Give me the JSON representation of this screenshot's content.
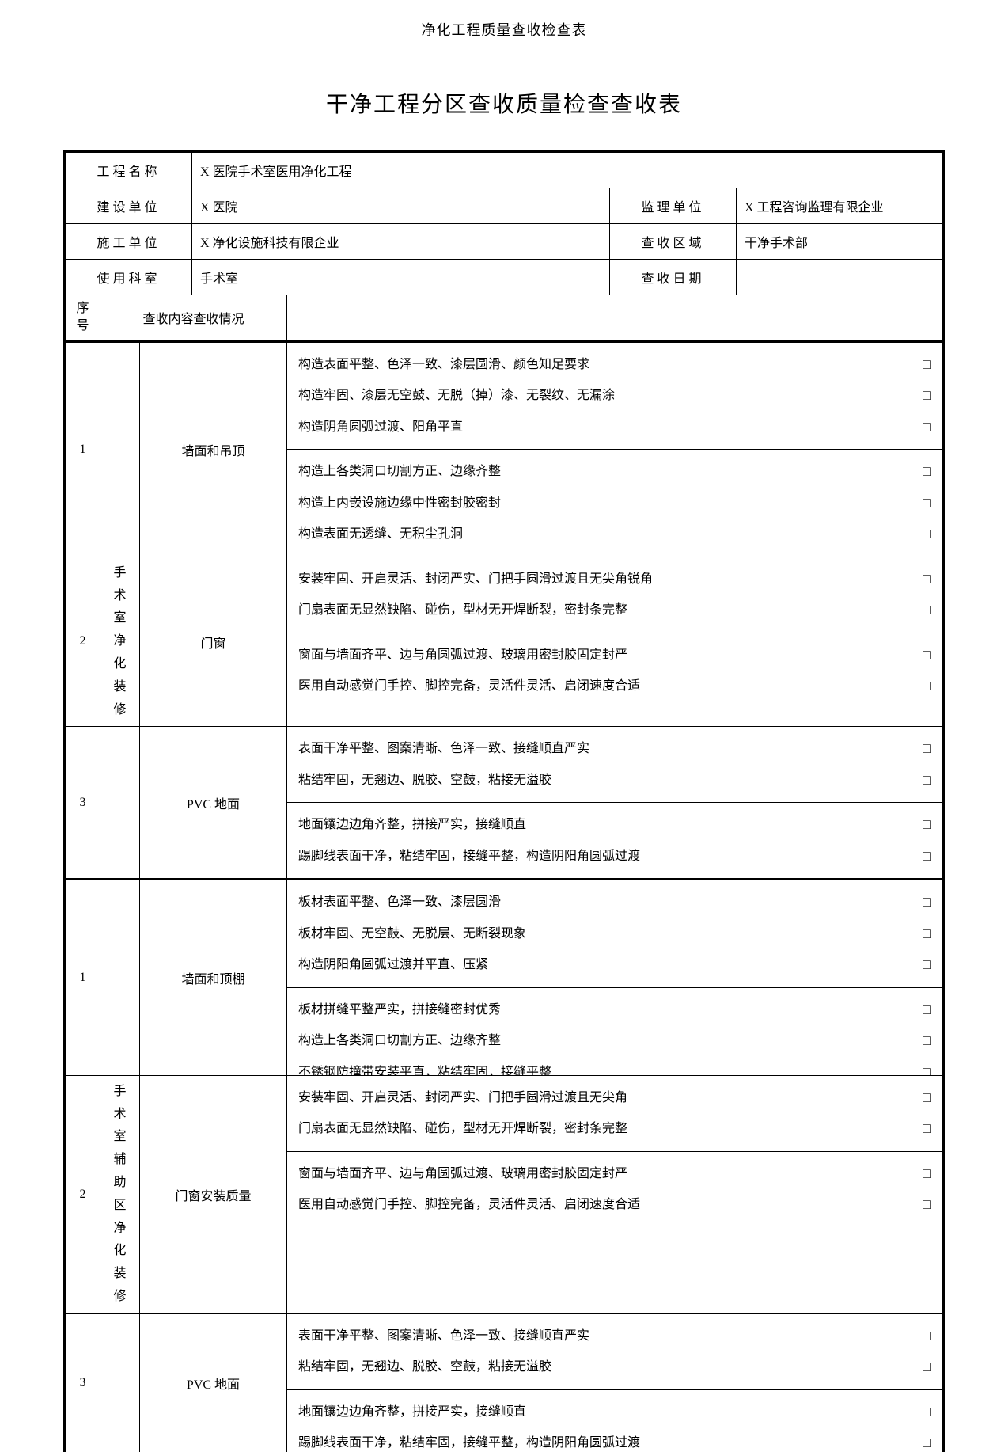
{
  "header": "净化工程质量查收检查表",
  "title": "干净工程分区查收质量检查查收表",
  "info": {
    "project_name_label": "工程名称",
    "project_name": "X 医院手术室医用净化工程",
    "builder_label": "建设单位",
    "builder": "X 医院",
    "supervisor_label": "监理单位",
    "supervisor": "X 工程咨询监理有限企业",
    "constructor_label": "施工单位",
    "constructor": "X 净化设施科技有限企业",
    "area_label": "查收区域",
    "area": "干净手术部",
    "dept_label": "使用科室",
    "dept": "手术室",
    "date_label": "查收日期",
    "date": ""
  },
  "cols": {
    "seq_label": "序号",
    "content_label": "查收内容查收情况"
  },
  "section1": {
    "category": "手术室净化装修",
    "groups": [
      {
        "seq": "1",
        "sub": "墙面和吊顶",
        "top": [
          "构造表面平整、色泽一致、漆层圆滑、颜色知足要求",
          "构造牢固、漆层无空鼓、无脱（掉）漆、无裂纹、无漏涂",
          "构造阴角圆弧过渡、阳角平直"
        ],
        "bot": [
          "构造上各类洞口切割方正、边缘齐整",
          "构造上内嵌设施边缘中性密封胶密封",
          "构造表面无透缝、无积尘孔洞"
        ]
      },
      {
        "seq": "2",
        "sub": "门窗",
        "top": [
          "安装牢固、开启灵活、封闭严实、门把手圆滑过渡且无尖角锐角",
          "门扇表面无显然缺陷、碰伤，型材无开焊断裂，密封条完整"
        ],
        "bot": [
          "窗面与墙面齐平、边与角圆弧过渡、玻璃用密封胶固定封严",
          "医用自动感觉门手控、脚控完备，灵活件灵活、启闭速度合适"
        ]
      },
      {
        "seq": "3",
        "sub": "PVC 地面",
        "top": [
          "表面干净平整、图案清晰、色泽一致、接缝顺直严实",
          "粘结牢固，无翘边、脱胶、空鼓，粘接无溢胶"
        ],
        "bot": [
          "地面镶边边角齐整，拼接严实，接缝顺直",
          "踢脚线表面干净，粘结牢固，接缝平整，构造阴阳角圆弧过渡"
        ]
      }
    ]
  },
  "section2": {
    "category": "手术室辅助区净化装修",
    "groups": [
      {
        "seq": "1",
        "sub": "墙面和顶棚",
        "top": [
          "板材表面平整、色泽一致、漆层圆滑",
          "板材牢固、无空鼓、无脱层、无断裂现象",
          "构造阴阳角圆弧过渡并平直、压紧"
        ],
        "bot": [
          "板材拼缝平整严实，拼接缝密封优秀",
          "构造上各类洞口切割方正、边缘齐整",
          "不锈钢防撞带安装平直，粘结牢固，接缝平整"
        ]
      },
      {
        "seq": "2",
        "sub": "门窗安装质量",
        "top": [
          "安装牢固、开启灵活、封闭严实、门把手圆滑过渡且无尖角",
          "门扇表面无显然缺陷、碰伤，型材无开焊断裂，密封条完整"
        ],
        "bot": [
          "窗面与墙面齐平、边与角圆弧过渡、玻璃用密封胶固定封严",
          "医用自动感觉门手控、脚控完备，灵活件灵活、启闭速度合适"
        ]
      },
      {
        "seq": "3",
        "sub": "PVC 地面",
        "top": [
          "表面干净平整、图案清晰、色泽一致、接缝顺直严实",
          "粘结牢固，无翘边、脱胶、空鼓，粘接无溢胶"
        ],
        "bot": [
          "地面镶边边角齐整，拼接严实，接缝顺直",
          "踢脚线表面干净，粘结牢固，接缝平整，构造阴阳角圆弧过渡"
        ]
      }
    ]
  },
  "checkbox_glyph": "□"
}
